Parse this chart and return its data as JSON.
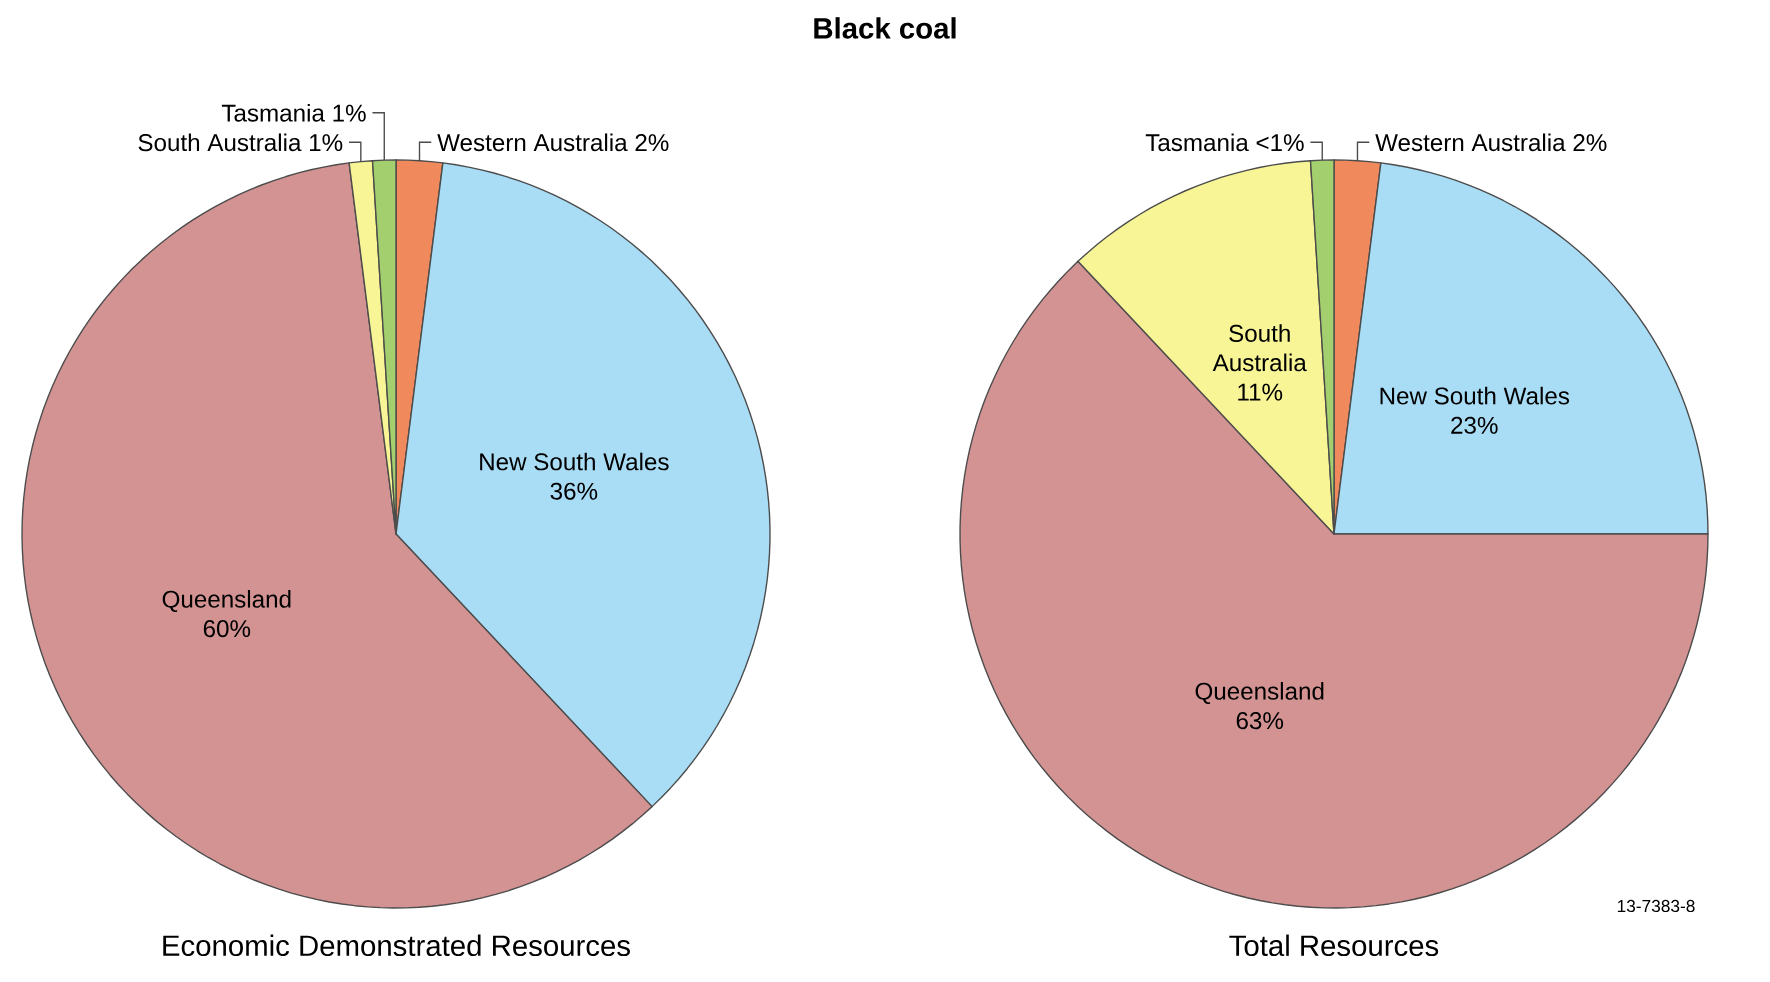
{
  "chart_data": [
    {
      "type": "pie",
      "title": "Black coal",
      "subtitle": "Economic Demonstrated Resources",
      "categories": [
        "Western Australia",
        "New South Wales",
        "Queensland",
        "South Australia",
        "Tasmania"
      ],
      "values": [
        2,
        36,
        60,
        1,
        1
      ],
      "value_labels": [
        "2%",
        "36%",
        "60%",
        "1%",
        "1%"
      ],
      "colors": [
        "#f08a5d",
        "#a9dcf5",
        "#d39393",
        "#f8f596",
        "#a3cf6e"
      ]
    },
    {
      "type": "pie",
      "subtitle": "Total Resources",
      "categories": [
        "Western Australia",
        "New South Wales",
        "Queensland",
        "South Australia",
        "Tasmania"
      ],
      "values": [
        2,
        23,
        63,
        11,
        1
      ],
      "value_labels": [
        "2%",
        "23%",
        "63%",
        "11%",
        "<1%"
      ],
      "colors": [
        "#f08a5d",
        "#a9dcf5",
        "#d39393",
        "#f8f596",
        "#a3cf6e"
      ],
      "annotations": [
        "13-7383-8"
      ]
    }
  ]
}
